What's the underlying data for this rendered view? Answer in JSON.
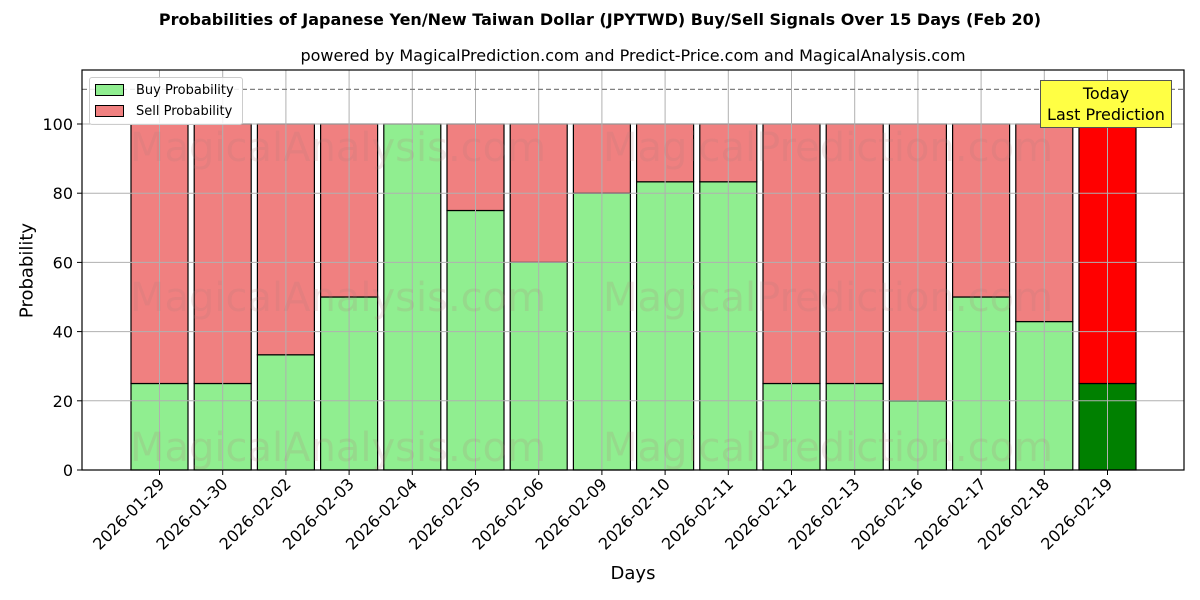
{
  "header": {
    "title": "Probabilities of Japanese Yen/New Taiwan Dollar (JPYTWD) Buy/Sell Signals Over 15 Days (Feb 20)",
    "subtitle": "powered by MagicalPrediction.com and Predict-Price.com and MagicalAnalysis.com"
  },
  "axes": {
    "xlabel": "Days",
    "ylabel": "Probability",
    "yticks": [
      "0",
      "20",
      "40",
      "60",
      "80",
      "100"
    ]
  },
  "legend": {
    "buy_label": "Buy Probability",
    "sell_label": "Sell Probability"
  },
  "annotation": {
    "line1": "Today",
    "line2": "Last Prediction"
  },
  "watermarks": [
    "MagicalAnalysis.com",
    "MagicalPrediction.com"
  ],
  "colors": {
    "buy": "#90ee90",
    "sell": "#f08080",
    "today_buy": "#008000",
    "today_sell": "#ff0000",
    "annotation_bg": "#ffff44"
  },
  "chart_data": {
    "type": "bar",
    "stacked": true,
    "title": "Probabilities of Japanese Yen/New Taiwan Dollar (JPYTWD) Buy/Sell Signals Over 15 Days (Feb 20)",
    "subtitle": "powered by MagicalPrediction.com and Predict-Price.com and MagicalAnalysis.com",
    "xlabel": "Days",
    "ylabel": "Probability",
    "ylim": [
      0,
      115
    ],
    "yticks": [
      0,
      20,
      40,
      60,
      80,
      100
    ],
    "grid": true,
    "legend_position": "upper left",
    "reference_line": {
      "y": 110,
      "style": "dashed",
      "color": "#808080"
    },
    "categories": [
      "2026-01-29",
      "2026-01-30",
      "2026-02-02",
      "2026-02-03",
      "2026-02-04",
      "2026-02-05",
      "2026-02-06",
      "2026-02-09",
      "2026-02-10",
      "2026-02-11",
      "2026-02-12",
      "2026-02-13",
      "2026-02-16",
      "2026-02-17",
      "2026-02-18",
      "2026-02-19"
    ],
    "series": [
      {
        "name": "Buy Probability",
        "values": [
          25,
          25,
          33.3,
          50,
          100,
          75,
          60,
          80,
          83.3,
          83.3,
          25,
          25,
          20,
          50,
          42.9,
          25
        ]
      },
      {
        "name": "Sell Probability",
        "values": [
          75,
          75,
          66.7,
          50,
          0,
          25,
          40,
          20,
          16.7,
          16.7,
          75,
          75,
          80,
          50,
          57.1,
          75
        ]
      }
    ],
    "annotations": [
      {
        "text": "Today\nLast Prediction",
        "x": "2026-02-19"
      }
    ]
  }
}
